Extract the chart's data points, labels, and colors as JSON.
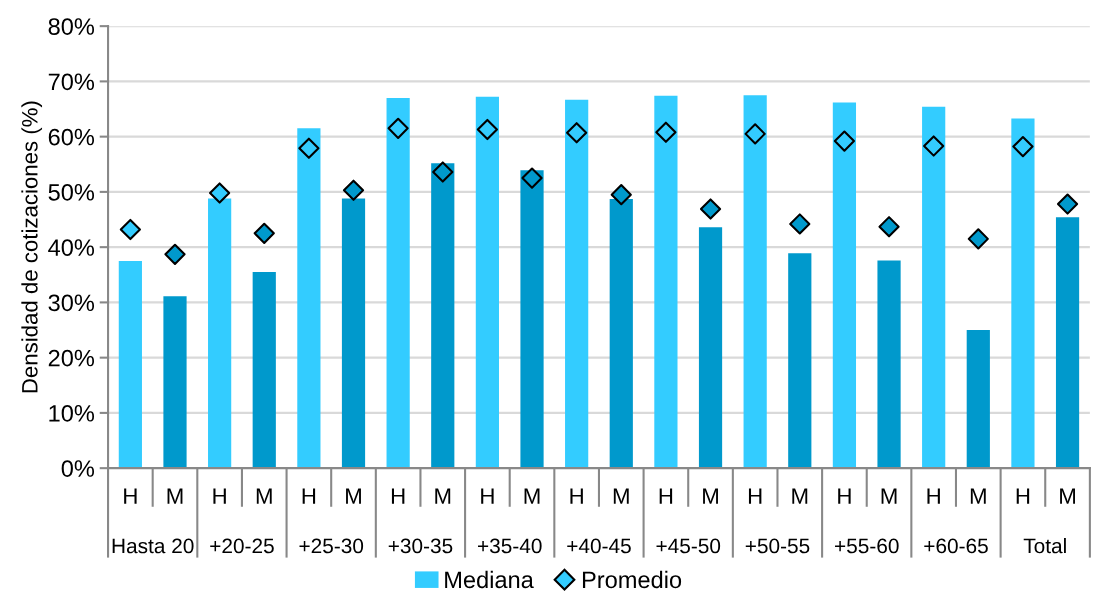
{
  "chart_data": {
    "type": "bar",
    "ylabel": "Densidad de cotizaciones (%)",
    "categories": [
      "H",
      "M",
      "H",
      "M",
      "H",
      "M",
      "H",
      "M",
      "H",
      "M",
      "H",
      "M",
      "H",
      "M",
      "H",
      "M",
      "H",
      "M",
      "H",
      "M",
      "H",
      "M"
    ],
    "annotations": [
      "Hasta 20",
      "+20-25",
      "+25-30",
      "+30-35",
      "+35-40",
      "+40-45",
      "+45-50",
      "+50-55",
      "+55-60",
      "+60-65",
      "Total"
    ],
    "series": [
      {
        "name": "Mediana",
        "colors": [
          "#33ccff",
          "#0099cc",
          "#33ccff",
          "#0099cc",
          "#33ccff",
          "#0099cc",
          "#33ccff",
          "#0099cc",
          "#33ccff",
          "#0099cc",
          "#33ccff",
          "#0099cc",
          "#33ccff",
          "#0099cc",
          "#33ccff",
          "#0099cc",
          "#33ccff",
          "#0099cc",
          "#33ccff",
          "#0099cc",
          "#33ccff",
          "#0099cc"
        ],
        "values": [
          37.5,
          31.1,
          48.8,
          35.5,
          61.5,
          48.8,
          67.0,
          55.2,
          67.2,
          53.9,
          66.7,
          48.7,
          67.4,
          43.6,
          67.5,
          38.9,
          66.2,
          37.6,
          65.4,
          25.0,
          63.3,
          45.4
        ]
      },
      {
        "name": "Promedio",
        "type": "scatter",
        "marker": "diamond",
        "colors": [
          "#33ccff",
          "#0099cc",
          "#33ccff",
          "#0099cc",
          "#33ccff",
          "#0099cc",
          "#33ccff",
          "#0099cc",
          "#33ccff",
          "#0099cc",
          "#33ccff",
          "#0099cc",
          "#33ccff",
          "#0099cc",
          "#33ccff",
          "#0099cc",
          "#33ccff",
          "#0099cc",
          "#33ccff",
          "#0099cc",
          "#33ccff",
          "#0099cc"
        ],
        "values": [
          43.2,
          38.7,
          49.8,
          42.5,
          57.9,
          50.3,
          61.5,
          53.6,
          61.3,
          52.5,
          60.7,
          49.5,
          60.8,
          46.9,
          60.5,
          44.2,
          59.2,
          43.7,
          58.3,
          41.5,
          58.2,
          47.8
        ]
      }
    ],
    "ylim": [
      0,
      80
    ],
    "yticks": [
      {
        "value": 0,
        "label": "0%"
      },
      {
        "value": 10,
        "label": "10%"
      },
      {
        "value": 20,
        "label": "20%"
      },
      {
        "value": 30,
        "label": "30%"
      },
      {
        "value": 40,
        "label": "40%"
      },
      {
        "value": 50,
        "label": "50%"
      },
      {
        "value": 60,
        "label": "60%"
      },
      {
        "value": 70,
        "label": "70%"
      },
      {
        "value": 80,
        "label": "80%"
      }
    ],
    "grid": "y",
    "legend": "bottom"
  }
}
